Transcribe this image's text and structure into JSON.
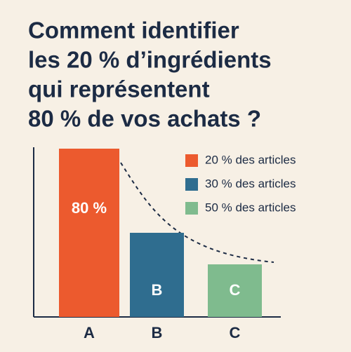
{
  "chart_data": {
    "type": "bar",
    "title": [
      "Comment identifier",
      "les 20 % d’ingrédients",
      "qui représentent",
      "80 % de vos achats ?"
    ],
    "categories": [
      "A",
      "B",
      "C"
    ],
    "values": [
      80,
      40,
      25
    ],
    "value_labels": [
      "80 %",
      null,
      null
    ],
    "bar_letters": [
      null,
      "B",
      "C"
    ],
    "colors": [
      "#ec5a2e",
      "#2f6d8f",
      "#7fbb8e"
    ],
    "legend": [
      {
        "name": "20 % des articles",
        "color": "#ec5a2e"
      },
      {
        "name": "30 % des articles",
        "color": "#2f6d8f"
      },
      {
        "name": "50 % des articles",
        "color": "#7fbb8e"
      }
    ],
    "ylim": [
      0,
      80
    ]
  }
}
